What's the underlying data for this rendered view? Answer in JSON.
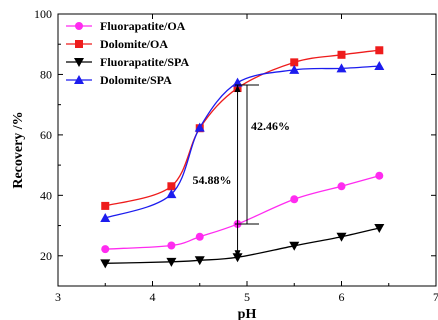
{
  "chart_data": {
    "type": "line",
    "xlabel": "pH",
    "ylabel": "Recovery /%",
    "xlim": [
      3,
      7
    ],
    "ylim": [
      10,
      100
    ],
    "xticks": [
      3,
      4,
      5,
      6,
      7
    ],
    "yticks": [
      20,
      40,
      60,
      80,
      100
    ],
    "x_tick_labels": [
      "3",
      "4",
      "5",
      "6",
      "7"
    ],
    "y_tick_labels": [
      "20",
      "40",
      "60",
      "80",
      "100"
    ],
    "legend_position": "top-left",
    "grid": false,
    "series": [
      {
        "name": "Fluorapatite/OA",
        "color": "#ff2bf0",
        "marker": "circle",
        "x": [
          3.5,
          4.2,
          4.5,
          4.9,
          5.5,
          6.0,
          6.4
        ],
        "y": [
          22.2,
          23.4,
          26.3,
          30.5,
          38.7,
          43.0,
          46.5
        ]
      },
      {
        "name": "Dolomite/OA",
        "color": "#ee1c1c",
        "marker": "square",
        "x": [
          3.5,
          4.2,
          4.5,
          4.9,
          5.5,
          6.0,
          6.4
        ],
        "y": [
          36.5,
          43.0,
          62.2,
          75.5,
          84.0,
          86.5,
          88.0
        ]
      },
      {
        "name": "Fluorapatite/SPA",
        "color": "#000000",
        "marker": "triangle-down",
        "x": [
          3.5,
          4.2,
          4.5,
          4.9,
          5.5,
          6.0,
          6.4
        ],
        "y": [
          17.5,
          18.0,
          18.5,
          19.5,
          23.3,
          26.3,
          29.2
        ]
      },
      {
        "name": "Dolomite/SPA",
        "color": "#1c1cee",
        "marker": "triangle-up",
        "x": [
          3.5,
          4.2,
          4.5,
          4.9,
          5.5,
          6.0,
          6.4
        ],
        "y": [
          32.5,
          40.4,
          62.4,
          77.3,
          81.5,
          82.0,
          82.8
        ]
      }
    ],
    "annotations": [
      {
        "text": "54.88%",
        "x": 4.9,
        "y_from": 19.5,
        "y_to": 76.5
      },
      {
        "text": "42.46%",
        "x": 5.0,
        "y_from": 30.5,
        "y_to": 76.5
      }
    ]
  }
}
